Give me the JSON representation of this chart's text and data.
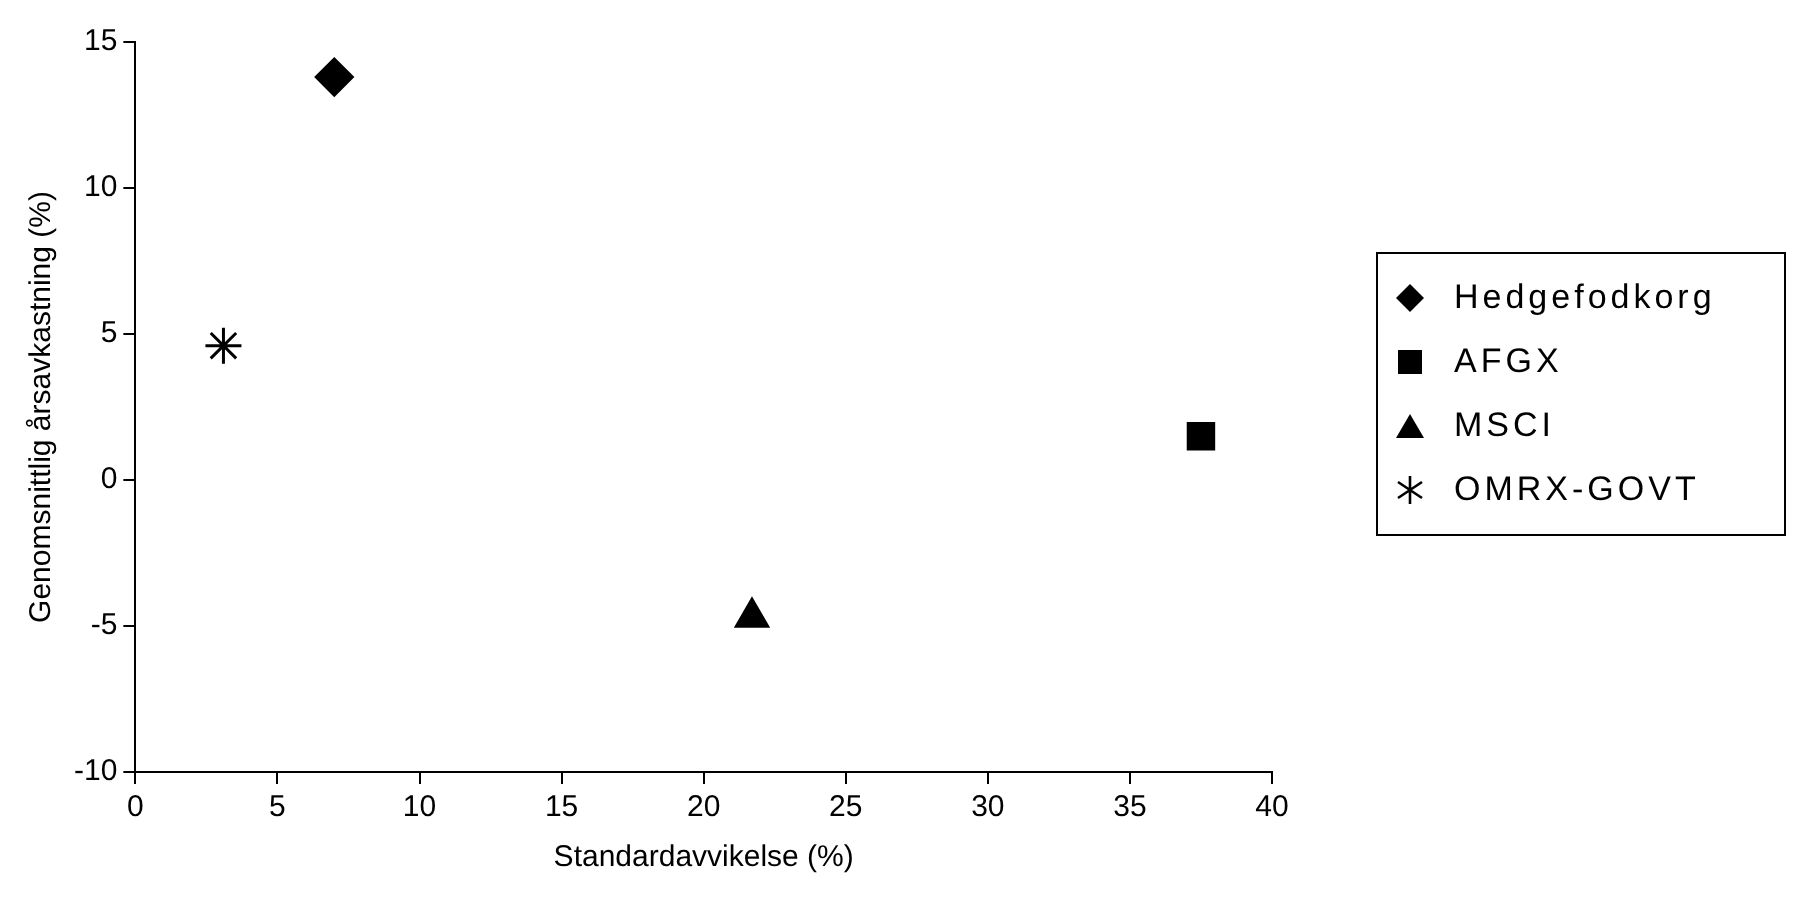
{
  "chart_data": {
    "type": "scatter",
    "xlabel": "Standardavvikelse (%)",
    "ylabel": "Genomsnittlig årsavkastning (%)",
    "xlim": [
      0,
      40
    ],
    "xticks": [
      0,
      5,
      10,
      15,
      20,
      25,
      30,
      35,
      40
    ],
    "ylim": [
      -10,
      15
    ],
    "yticks": [
      -10,
      -5,
      0,
      5,
      10,
      15
    ],
    "grid": false,
    "legend": "right",
    "series": [
      {
        "name": "Hedgefodkorg",
        "color": "#000000",
        "marker": "diamond",
        "x": [
          7.0
        ],
        "values": [
          13.8
        ]
      },
      {
        "name": "AFGX",
        "color": "#000000",
        "marker": "square",
        "x": [
          37.5
        ],
        "values": [
          1.5
        ]
      },
      {
        "name": "MSCI",
        "color": "#000000",
        "marker": "triangle",
        "x": [
          21.7
        ],
        "values": [
          -4.7
        ]
      },
      {
        "name": "OMRX-GOVT",
        "color": "#000000",
        "marker": "cross",
        "x": [
          3.1
        ],
        "values": [
          4.6
        ]
      }
    ]
  }
}
